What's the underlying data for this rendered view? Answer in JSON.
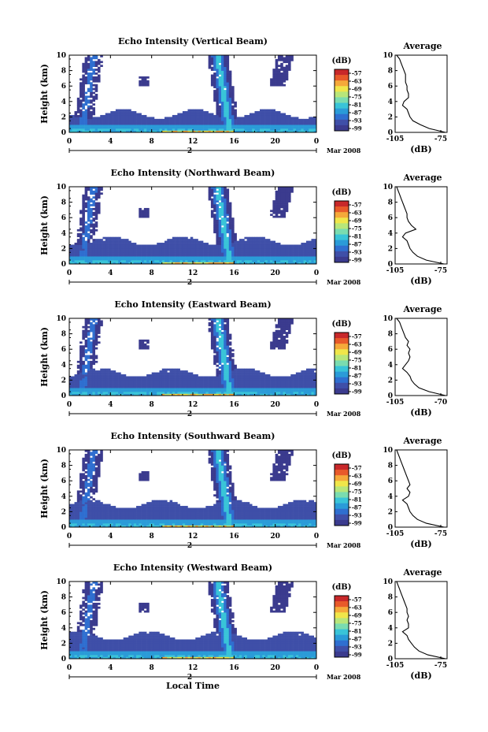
{
  "chart_data": {
    "type": "heatmap",
    "xlabel": "Local Time",
    "xticks": [
      "0",
      "4",
      "8",
      "12",
      "16",
      "20",
      "0"
    ],
    "xlim": [
      0,
      24
    ],
    "day_label": "2",
    "month_label": "Mar 2008",
    "colorbar": {
      "unit": "(dB)",
      "ticks": [
        "-57",
        "-63",
        "-69",
        "-75",
        "-81",
        "-87",
        "-93",
        "-99"
      ],
      "colors": [
        "#3b3b8e",
        "#3f4fa8",
        "#2f6fd0",
        "#2a9bd8",
        "#39c4d8",
        "#7adcb0",
        "#b8e67a",
        "#f0e64a",
        "#f5a93a",
        "#e85a2a",
        "#c8282a"
      ]
    },
    "panels": [
      {
        "title": "Echo Intensity (Vertical Beam)",
        "ylabel": "Height (km)",
        "yticks": [
          "0",
          "2",
          "4",
          "6",
          "8",
          "10"
        ],
        "ylim": [
          0,
          10
        ],
        "profile": {
          "title": "Average",
          "xlabel": "(dB)",
          "xticks": [
            "-105",
            "-75"
          ],
          "xlim": [
            -105,
            -70
          ],
          "heights": [
            0,
            0.5,
            1,
            1.5,
            2,
            2.5,
            3,
            3.5,
            4,
            4.5,
            5,
            5.5,
            6,
            6.5,
            7,
            7.5,
            8,
            8.5,
            9,
            9.5,
            10
          ],
          "values": [
            -71,
            -82,
            -88,
            -93,
            -95,
            -96,
            -97,
            -100,
            -99,
            -96,
            -96,
            -97,
            -97,
            -98,
            -98,
            -98,
            -99,
            -100,
            -101,
            -102,
            -104
          ]
        }
      },
      {
        "title": "Echo Intensity (Northward Beam)",
        "ylabel": "Height (km)",
        "yticks": [
          "0",
          "2",
          "4",
          "6",
          "8",
          "10"
        ],
        "ylim": [
          0,
          10
        ],
        "profile": {
          "title": "Average",
          "xlabel": "(dB)",
          "xticks": [
            "-105",
            "-75"
          ],
          "xlim": [
            -105,
            -70
          ],
          "heights": [
            0,
            0.5,
            1,
            1.5,
            2,
            2.5,
            3,
            3.5,
            4,
            4.5,
            5,
            5.5,
            6,
            6.5,
            7,
            7.5,
            8,
            8.5,
            9,
            9.5,
            10
          ],
          "values": [
            -72,
            -84,
            -90,
            -93,
            -95,
            -96,
            -97,
            -100,
            -98,
            -91,
            -94,
            -96,
            -97,
            -97,
            -98,
            -99,
            -100,
            -101,
            -102,
            -103,
            -104
          ]
        }
      },
      {
        "title": "Echo Intensity (Eastward Beam)",
        "ylabel": "Height (km)",
        "yticks": [
          "0",
          "2",
          "4",
          "6",
          "8",
          "10"
        ],
        "ylim": [
          0,
          10
        ],
        "profile": {
          "title": "Average",
          "xlabel": "(dB)",
          "xticks": [
            "-105",
            "-70"
          ],
          "xlim": [
            -105,
            -70
          ],
          "heights": [
            0,
            0.5,
            1,
            1.5,
            2,
            2.5,
            3,
            3.5,
            4,
            4.5,
            5,
            5.5,
            6,
            6.5,
            7,
            7.5,
            8,
            8.5,
            9,
            9.5,
            10
          ],
          "values": [
            -71,
            -82,
            -89,
            -92,
            -94,
            -95,
            -97,
            -100,
            -98,
            -96,
            -95,
            -96,
            -95,
            -97,
            -96,
            -98,
            -99,
            -100,
            -101,
            -102,
            -104
          ]
        }
      },
      {
        "title": "Echo Intensity (Southward Beam)",
        "ylabel": "Height (km)",
        "yticks": [
          "0",
          "2",
          "4",
          "6",
          "8",
          "10"
        ],
        "ylim": [
          0,
          10
        ],
        "profile": {
          "title": "Average",
          "xlabel": "(dB)",
          "xticks": [
            "-105",
            "-75"
          ],
          "xlim": [
            -105,
            -70
          ],
          "heights": [
            0,
            0.5,
            1,
            1.5,
            2,
            2.5,
            3,
            3.5,
            4,
            4.5,
            5,
            5.5,
            6,
            6.5,
            7,
            7.5,
            8,
            8.5,
            9,
            9.5,
            10
          ],
          "values": [
            -72,
            -84,
            -90,
            -93,
            -95,
            -96,
            -97,
            -100,
            -96,
            -95,
            -97,
            -95,
            -96,
            -97,
            -98,
            -99,
            -100,
            -101,
            -102,
            -103,
            -104
          ]
        }
      },
      {
        "title": "Echo Intensity (Westward Beam)",
        "ylabel": "Height (km)",
        "yticks": [
          "0",
          "2",
          "4",
          "6",
          "8",
          "10"
        ],
        "ylim": [
          0,
          10
        ],
        "profile": {
          "title": "Average",
          "xlabel": "(dB)",
          "xticks": [
            "-105",
            "-75"
          ],
          "xlim": [
            -105,
            -70
          ],
          "heights": [
            0,
            0.5,
            1,
            1.5,
            2,
            2.5,
            3,
            3.5,
            4,
            4.5,
            5,
            5.5,
            6,
            6.5,
            7,
            7.5,
            8,
            8.5,
            9,
            9.5,
            10
          ],
          "values": [
            -71,
            -83,
            -89,
            -92,
            -94,
            -96,
            -97,
            -100,
            -96,
            -96,
            -97,
            -96,
            -97,
            -97,
            -98,
            -99,
            -100,
            -101,
            -102,
            -103,
            -104
          ]
        }
      }
    ]
  }
}
